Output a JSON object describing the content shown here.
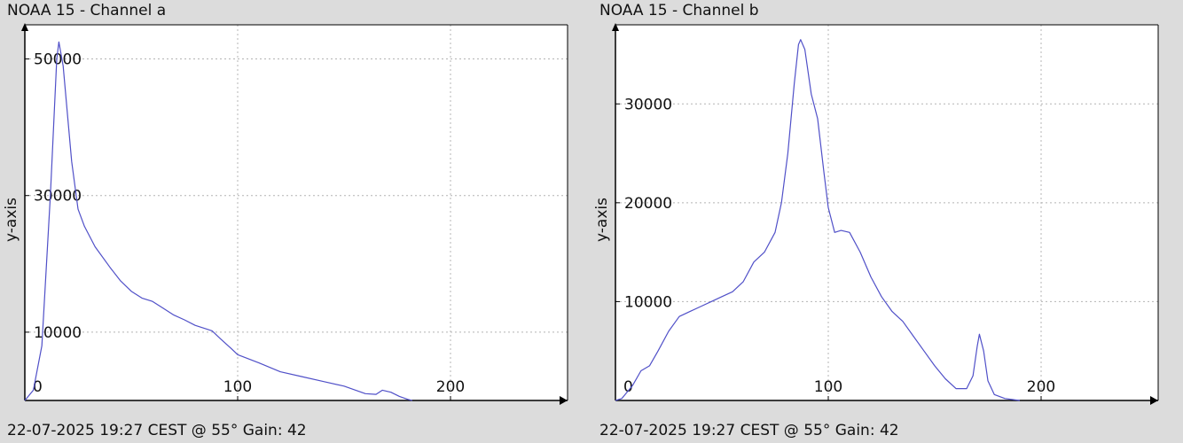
{
  "chart_data": [
    {
      "type": "line",
      "title": "NOAA 15 - Channel a",
      "footer": "22-07-2025 19:27 CEST @ 55° Gain: 42",
      "ylabel": "y-axis",
      "xlabel": "",
      "xlim": [
        0,
        255
      ],
      "ylim": [
        0,
        55000
      ],
      "x_ticks": [
        0,
        100,
        200
      ],
      "y_ticks": [
        10000,
        30000,
        50000
      ],
      "grid": true,
      "series": [
        {
          "color": "#5050c8",
          "points": [
            [
              0,
              0
            ],
            [
              4,
              1500
            ],
            [
              8,
              8000
            ],
            [
              12,
              30000
            ],
            [
              15,
              50000
            ],
            [
              16,
              52500
            ],
            [
              18,
              49000
            ],
            [
              22,
              35000
            ],
            [
              25,
              28000
            ],
            [
              28,
              25500
            ],
            [
              33,
              22500
            ],
            [
              40,
              19500
            ],
            [
              45,
              17500
            ],
            [
              50,
              16000
            ],
            [
              55,
              15000
            ],
            [
              60,
              14500
            ],
            [
              65,
              13500
            ],
            [
              70,
              12500
            ],
            [
              75,
              11800
            ],
            [
              80,
              11000
            ],
            [
              85,
              10500
            ],
            [
              88,
              10200
            ],
            [
              92,
              9000
            ],
            [
              97,
              7600
            ],
            [
              100,
              6700
            ],
            [
              110,
              5500
            ],
            [
              120,
              4200
            ],
            [
              130,
              3500
            ],
            [
              140,
              2800
            ],
            [
              150,
              2100
            ],
            [
              160,
              1000
            ],
            [
              165,
              900
            ],
            [
              168,
              1500
            ],
            [
              172,
              1200
            ],
            [
              176,
              600
            ],
            [
              180,
              150
            ],
            [
              182,
              0
            ]
          ]
        }
      ]
    },
    {
      "type": "line",
      "title": "NOAA 15 - Channel b",
      "footer": "22-07-2025 19:27 CEST @ 55° Gain: 42",
      "ylabel": "y-axis",
      "xlabel": "",
      "xlim": [
        0,
        255
      ],
      "ylim": [
        0,
        38000
      ],
      "x_ticks": [
        0,
        100,
        200
      ],
      "y_ticks": [
        10000,
        20000,
        30000
      ],
      "grid": true,
      "series": [
        {
          "color": "#5050c8",
          "points": [
            [
              0,
              0
            ],
            [
              3,
              200
            ],
            [
              8,
              1500
            ],
            [
              12,
              3000
            ],
            [
              16,
              3500
            ],
            [
              20,
              5000
            ],
            [
              25,
              7000
            ],
            [
              30,
              8500
            ],
            [
              35,
              9000
            ],
            [
              40,
              9500
            ],
            [
              45,
              10000
            ],
            [
              50,
              10500
            ],
            [
              55,
              11000
            ],
            [
              60,
              12000
            ],
            [
              65,
              14000
            ],
            [
              70,
              15000
            ],
            [
              75,
              17000
            ],
            [
              78,
              20000
            ],
            [
              81,
              25000
            ],
            [
              84,
              32000
            ],
            [
              86,
              36000
            ],
            [
              87,
              36500
            ],
            [
              89,
              35500
            ],
            [
              92,
              31000
            ],
            [
              95,
              28500
            ],
            [
              98,
              23000
            ],
            [
              100,
              19500
            ],
            [
              103,
              17000
            ],
            [
              106,
              17200
            ],
            [
              110,
              17000
            ],
            [
              115,
              15000
            ],
            [
              120,
              12500
            ],
            [
              125,
              10500
            ],
            [
              130,
              9000
            ],
            [
              135,
              8000
            ],
            [
              140,
              6500
            ],
            [
              145,
              5000
            ],
            [
              150,
              3500
            ],
            [
              155,
              2200
            ],
            [
              160,
              1200
            ],
            [
              165,
              1200
            ],
            [
              168,
              2500
            ],
            [
              170,
              5500
            ],
            [
              171,
              6700
            ],
            [
              173,
              5000
            ],
            [
              175,
              2000
            ],
            [
              178,
              600
            ],
            [
              183,
              200
            ],
            [
              190,
              0
            ]
          ]
        }
      ]
    }
  ]
}
